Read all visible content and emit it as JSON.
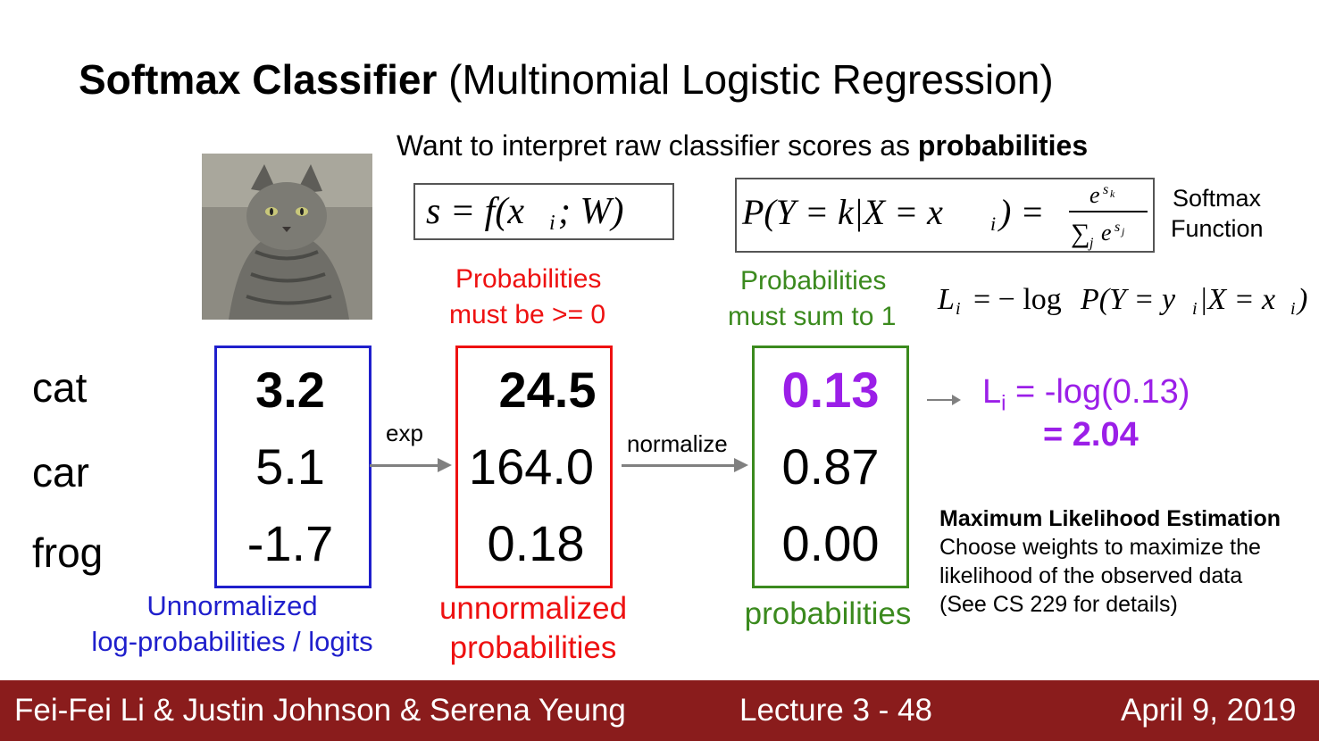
{
  "title": {
    "bold": "Softmax Classifier",
    "rest": " (Multinomial Logistic Regression)"
  },
  "subtitle": {
    "text": "Want to interpret raw classifier scores as ",
    "bold": "probabilities"
  },
  "softmax_label_1": "Softmax",
  "softmax_label_2": "Function",
  "classes": [
    "cat",
    "car",
    "frog"
  ],
  "scores": {
    "cat": "3.2",
    "car": "5.1",
    "frog": "-1.7"
  },
  "exp_scores": {
    "cat": "24.5",
    "car": "164.0",
    "frog": "0.18"
  },
  "probs": {
    "cat": "0.13",
    "car": "0.87",
    "frog": "0.00"
  },
  "exp_label": "exp",
  "normalize_label": "normalize",
  "red_note": {
    "line1": "Probabilities",
    "line2": "must be >= 0"
  },
  "green_note": {
    "line1": "Probabilities",
    "line2": "must sum to 1"
  },
  "blue_caption": {
    "line1": "Unnormalized",
    "line2": "log-probabilities / logits"
  },
  "red_caption": {
    "line1": "unnormalized",
    "line2": "probabilities"
  },
  "green_caption": "probabilities",
  "loss_result": {
    "lhs": "L",
    "sub": "i",
    "rhs": " = -log(0.13)",
    "line2": "= 2.04"
  },
  "mle": {
    "heading": "Maximum Likelihood Estimation",
    "line1": "Choose weights to maximize the",
    "line2": "likelihood of the observed data",
    "line3": "(See CS 229 for details)"
  },
  "footer": {
    "authors": "Fei-Fei Li & Justin Johnson & Serena Yeung",
    "lecture": "Lecture 3 -   48",
    "date": "April 9, 2019"
  },
  "colors": {
    "blue": "#1f1fcc",
    "red": "#ee1111",
    "green": "#3b8a1e",
    "purple": "#9b1fe8",
    "footer": "#8a1c1c"
  },
  "image": {
    "subject": "tabby-cat-photo"
  }
}
